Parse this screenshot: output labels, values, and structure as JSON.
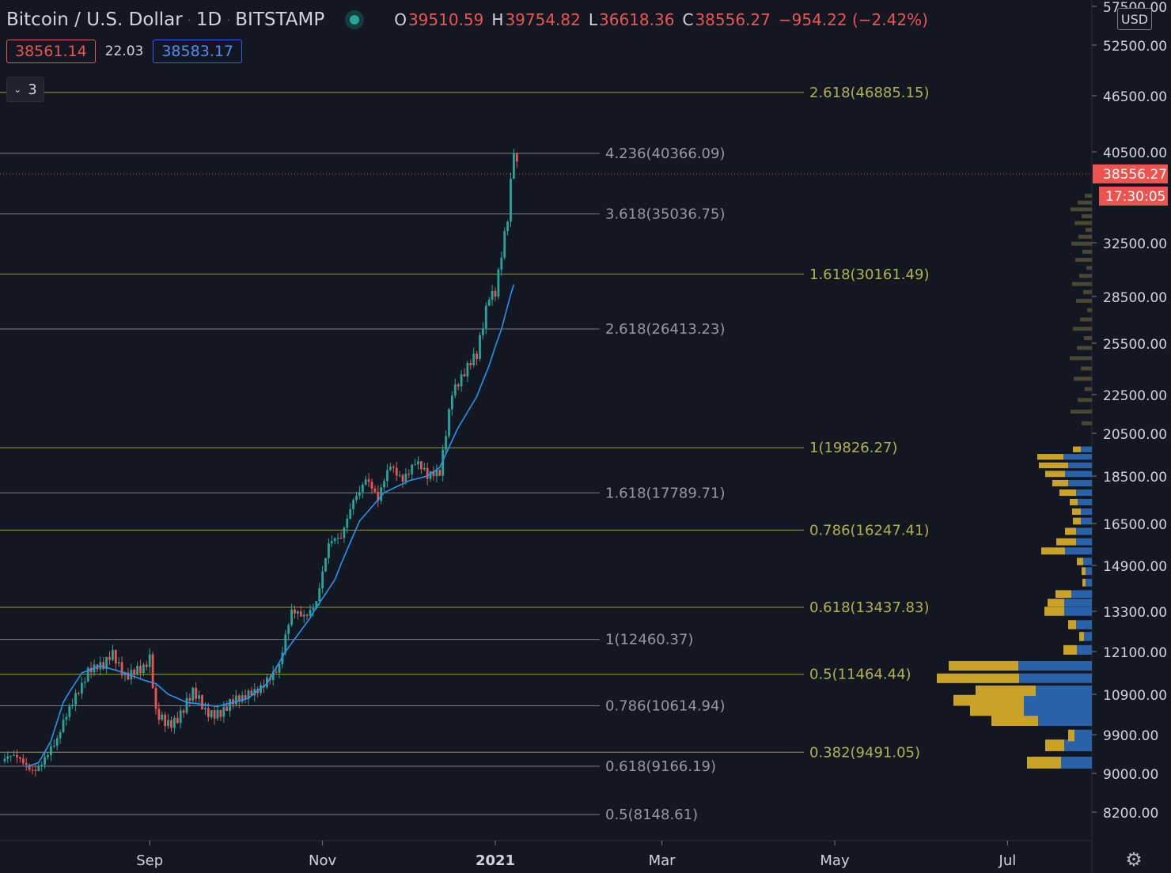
{
  "header": {
    "symbol": "Bitcoin / U.S. Dollar",
    "interval": "1D",
    "exchange": "BITSTAMP",
    "sep": "·",
    "open_k": "O",
    "open_v": "39510.59",
    "high_k": "H",
    "high_v": "39754.82",
    "low_k": "L",
    "low_v": "36618.36",
    "close_k": "C",
    "close_v": "38556.27",
    "change": "−954.22 (−2.42%)"
  },
  "indicator_values": {
    "bid": "38561.14",
    "spread": "22.03",
    "ask": "38583.17"
  },
  "collapse": {
    "chevron": "⌄",
    "count": "3"
  },
  "currency": "USD",
  "settings_icon": "⚙",
  "colors": {
    "bg": "#131722",
    "up": "#26a69a",
    "down": "#ef5350",
    "ma": "#2196f3",
    "fib_a": "#9a9a3a",
    "fib_b": "#787b86",
    "vol_gold": "#c9a227",
    "vol_blue": "#2962a8"
  },
  "chart_data": {
    "type": "candlestick",
    "x_labels": [
      "Sep",
      "Nov",
      "2021",
      "Mar",
      "May",
      "Jul"
    ],
    "y_ticks": [
      57500,
      52500,
      46500,
      40500,
      32500,
      28500,
      25500,
      22500,
      20500,
      18500,
      16500,
      14900,
      13300,
      12100,
      10900,
      9900,
      9000,
      8200
    ],
    "y_tick_labels": [
      "57500.00",
      "52500.00",
      "46500.00",
      "40500.00",
      "32500.00",
      "28500.00",
      "25500.00",
      "22500.00",
      "20500.00",
      "18500.00",
      "16500.00",
      "14900.00",
      "13300.00",
      "12100.00",
      "10900.00",
      "9900.00",
      "9000.00",
      "8200.00"
    ],
    "last_price": "38556.27",
    "countdown": "17:30:05",
    "fib_levels_a": [
      {
        "value": 46885.15,
        "label": "2.618(46885.15)"
      },
      {
        "value": 30161.49,
        "label": "1.618(30161.49)"
      },
      {
        "value": 19826.27,
        "label": "1(19826.27)"
      },
      {
        "value": 16247.41,
        "label": "0.786(16247.41)"
      },
      {
        "value": 13437.83,
        "label": "0.618(13437.83)"
      },
      {
        "value": 11464.44,
        "label": "0.5(11464.44)"
      },
      {
        "value": 9491.05,
        "label": "0.382(9491.05)"
      }
    ],
    "fib_levels_b": [
      {
        "value": 40366.09,
        "label": "4.236(40366.09)"
      },
      {
        "value": 35036.75,
        "label": "3.618(35036.75)"
      },
      {
        "value": 26413.23,
        "label": "2.618(26413.23)"
      },
      {
        "value": 17789.71,
        "label": "1.618(17789.71)"
      },
      {
        "value": 12460.37,
        "label": "1(12460.37)"
      },
      {
        "value": 10614.94,
        "label": "0.786(10614.94)"
      },
      {
        "value": 9166.19,
        "label": "0.618(9166.19)"
      },
      {
        "value": 8148.61,
        "label": "0.5(8148.61)"
      }
    ],
    "price_path": [
      [
        0,
        9280
      ],
      [
        10,
        9200
      ],
      [
        18,
        9600
      ],
      [
        24,
        11000
      ],
      [
        28,
        11700
      ],
      [
        33,
        11500
      ],
      [
        36,
        11950
      ],
      [
        40,
        11600
      ],
      [
        43,
        11700
      ],
      [
        46,
        11500
      ],
      [
        48,
        11700
      ],
      [
        50,
        10300
      ],
      [
        54,
        10300
      ],
      [
        58,
        10500
      ],
      [
        62,
        10800
      ],
      [
        66,
        10400
      ],
      [
        70,
        10600
      ],
      [
        74,
        10700
      ],
      [
        78,
        10600
      ],
      [
        82,
        11000
      ],
      [
        86,
        11500
      ],
      [
        90,
        11600
      ],
      [
        94,
        13100
      ],
      [
        98,
        13300
      ],
      [
        102,
        13800
      ],
      [
        106,
        15500
      ],
      [
        110,
        15800
      ],
      [
        114,
        17800
      ],
      [
        118,
        18500
      ],
      [
        122,
        17200
      ],
      [
        126,
        19000
      ],
      [
        130,
        18700
      ],
      [
        134,
        19100
      ],
      [
        138,
        18200
      ],
      [
        142,
        18800
      ],
      [
        146,
        23000
      ],
      [
        150,
        23500
      ],
      [
        154,
        24500
      ],
      [
        158,
        29000
      ],
      [
        160,
        29300
      ],
      [
        162,
        32000
      ],
      [
        164,
        34500
      ],
      [
        166,
        40100
      ],
      [
        167,
        38556
      ]
    ],
    "ma_path": [
      [
        8,
        9150
      ],
      [
        12,
        9250
      ],
      [
        16,
        9750
      ],
      [
        20,
        10700
      ],
      [
        26,
        11500
      ],
      [
        32,
        11700
      ],
      [
        40,
        11500
      ],
      [
        46,
        11300
      ],
      [
        50,
        11200
      ],
      [
        54,
        10900
      ],
      [
        60,
        10700
      ],
      [
        70,
        10600
      ],
      [
        80,
        10800
      ],
      [
        86,
        11200
      ],
      [
        92,
        12100
      ],
      [
        100,
        13100
      ],
      [
        108,
        14400
      ],
      [
        116,
        16600
      ],
      [
        124,
        17800
      ],
      [
        132,
        18300
      ],
      [
        138,
        18500
      ],
      [
        142,
        18900
      ],
      [
        148,
        20800
      ],
      [
        154,
        22400
      ],
      [
        158,
        24200
      ],
      [
        162,
        26400
      ],
      [
        166,
        29400
      ]
    ],
    "volume_profile": [
      {
        "price": 9250,
        "gold": 43,
        "blue": 39
      },
      {
        "price": 9650,
        "gold": 24,
        "blue": 35
      },
      {
        "price": 9880,
        "gold": 8,
        "blue": 22
      },
      {
        "price": 10250,
        "gold": 59,
        "blue": 68
      },
      {
        "price": 10500,
        "gold": 68,
        "blue": 86
      },
      {
        "price": 10750,
        "gold": 89,
        "blue": 86
      },
      {
        "price": 11000,
        "gold": 76,
        "blue": 71
      },
      {
        "price": 11350,
        "gold": 104,
        "blue": 92
      },
      {
        "price": 11700,
        "gold": 88,
        "blue": 93
      },
      {
        "price": 12150,
        "gold": 17,
        "blue": 19
      },
      {
        "price": 12550,
        "gold": 6,
        "blue": 10
      },
      {
        "price": 12900,
        "gold": 10,
        "blue": 20
      },
      {
        "price": 13300,
        "gold": 25,
        "blue": 35
      },
      {
        "price": 13600,
        "gold": 21,
        "blue": 35
      },
      {
        "price": 13900,
        "gold": 20,
        "blue": 26
      },
      {
        "price": 14300,
        "gold": 4,
        "blue": 8
      },
      {
        "price": 14700,
        "gold": 5,
        "blue": 8
      },
      {
        "price": 15050,
        "gold": 8,
        "blue": 11
      },
      {
        "price": 15450,
        "gold": 30,
        "blue": 34
      },
      {
        "price": 15800,
        "gold": 25,
        "blue": 20
      },
      {
        "price": 16200,
        "gold": 14,
        "blue": 20
      },
      {
        "price": 16600,
        "gold": 10,
        "blue": 14
      },
      {
        "price": 17000,
        "gold": 11,
        "blue": 14
      },
      {
        "price": 17400,
        "gold": 10,
        "blue": 18
      },
      {
        "price": 17800,
        "gold": 21,
        "blue": 20
      },
      {
        "price": 18200,
        "gold": 20,
        "blue": 30
      },
      {
        "price": 18600,
        "gold": 25,
        "blue": 34
      },
      {
        "price": 19000,
        "gold": 37,
        "blue": 30
      },
      {
        "price": 19400,
        "gold": 33,
        "blue": 36
      },
      {
        "price": 19750,
        "gold": 10,
        "blue": 14
      }
    ]
  }
}
